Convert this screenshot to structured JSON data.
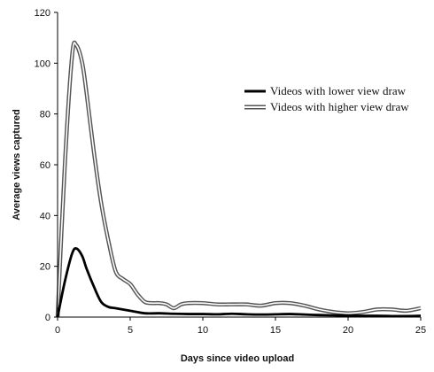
{
  "chart_data": {
    "type": "line",
    "title": "",
    "xlabel": "Days since video upload",
    "ylabel": "Average views captured",
    "xlim": [
      0,
      25
    ],
    "ylim": [
      0,
      120
    ],
    "xticks": [
      0,
      5,
      10,
      15,
      20,
      25
    ],
    "yticks": [
      0,
      20,
      40,
      60,
      80,
      100,
      120
    ],
    "grid": false,
    "legend_position": "right",
    "series": [
      {
        "name": "Videos with lower view draw",
        "style": "solid-black",
        "color": "#000000",
        "x": [
          0,
          0.5,
          1,
          1.3,
          1.7,
          2,
          2.5,
          3,
          3.5,
          4,
          5,
          6,
          7,
          8,
          9,
          10,
          11,
          12,
          13,
          14,
          15,
          16,
          17,
          18,
          19,
          20,
          21,
          22,
          23,
          24,
          25
        ],
        "y": [
          0,
          14,
          25,
          27,
          24,
          19,
          12,
          6,
          4,
          3.5,
          2.5,
          1.5,
          1.5,
          1.3,
          1.2,
          1.2,
          1.1,
          1.3,
          1.1,
          1,
          1.1,
          1.2,
          1,
          0.8,
          0.7,
          0.6,
          0.5,
          0.5,
          0.4,
          0.4,
          0.5
        ]
      },
      {
        "name": "Videos with higher view draw",
        "style": "double-outline",
        "color": "#555555",
        "x": [
          0,
          0.5,
          1,
          1.3,
          1.7,
          2,
          2.5,
          3,
          3.5,
          4,
          4.5,
          5,
          5.5,
          6,
          6.5,
          7,
          7.5,
          8,
          8.5,
          9,
          10,
          11,
          12,
          13,
          14,
          15,
          16,
          17,
          18,
          19,
          20,
          21,
          22,
          23,
          24,
          25
        ],
        "y": [
          0,
          60,
          103,
          107,
          100,
          88,
          65,
          45,
          30,
          18,
          15,
          13,
          9,
          6,
          5.5,
          5.5,
          5,
          3.5,
          5,
          5.5,
          5.5,
          5,
          5,
          5,
          4.5,
          5.5,
          5.5,
          4.5,
          3,
          2,
          1.5,
          2,
          3,
          3,
          2.5,
          3.5
        ]
      }
    ]
  }
}
